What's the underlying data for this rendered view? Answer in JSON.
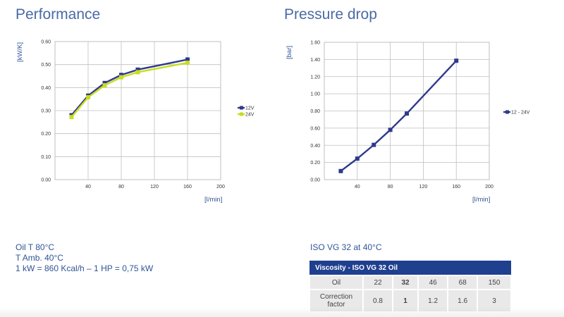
{
  "colors": {
    "series_blue": "#2e3a8c",
    "series_green": "#c8dc1e",
    "title": "#4a6aa5",
    "table_header": "#1f3f8f"
  },
  "chart_data": [
    {
      "type": "line",
      "title": "Performance",
      "ylabel": "[kW/K]",
      "xlabel": "[l/min]",
      "xlim": [
        0,
        200
      ],
      "ylim": [
        0,
        0.6
      ],
      "xticks": [
        "40",
        "80",
        "120",
        "160",
        "200"
      ],
      "yticks": [
        "0.00",
        "0.10",
        "0.20",
        "0.30",
        "0.40",
        "0.50",
        "0.60"
      ],
      "grid": true,
      "legend": "right",
      "series": [
        {
          "name": "12V",
          "color": "#2e3a8c",
          "x": [
            20,
            40,
            60,
            80,
            100,
            160
          ],
          "y": [
            0.28,
            0.365,
            0.42,
            0.455,
            0.478,
            0.522
          ]
        },
        {
          "name": "24V",
          "color": "#c8dc1e",
          "x": [
            20,
            40,
            60,
            80,
            100,
            160
          ],
          "y": [
            0.272,
            0.358,
            0.41,
            0.445,
            0.467,
            0.508
          ]
        }
      ]
    },
    {
      "type": "line",
      "title": "Pressure drop",
      "ylabel": "[bar]",
      "xlabel": "[l/min]",
      "xlim": [
        0,
        200
      ],
      "ylim": [
        0,
        1.6
      ],
      "xticks": [
        "40",
        "80",
        "120",
        "160",
        "200"
      ],
      "yticks": [
        "0.00",
        "0.20",
        "0.40",
        "0.60",
        "0.80",
        "1.00",
        "1.20",
        "1.40",
        "1.60"
      ],
      "grid": true,
      "legend": "right",
      "series": [
        {
          "name": "12 - 24V",
          "color": "#2e3a8c",
          "x": [
            20,
            40,
            60,
            80,
            100,
            160
          ],
          "y": [
            0.1,
            0.245,
            0.405,
            0.58,
            0.77,
            1.385
          ]
        }
      ]
    }
  ],
  "notes": {
    "line1": "Oil T 80°C",
    "line2": "T Amb. 40°C",
    "line3": "1 kW = 860 Kcal/h – 1 HP = 0,75 kW"
  },
  "viscosity": {
    "label": "ISO VG 32 at 40°C",
    "header": "Viscosity - ISO VG 32 Oil",
    "oil_label": "Oil",
    "oil_values": [
      "22",
      "32",
      "46",
      "68",
      "150"
    ],
    "corr_label_1": "Correction",
    "corr_label_2": "factor",
    "corr_values": [
      "0.8",
      "1",
      "1.2",
      "1.6",
      "3"
    ]
  }
}
